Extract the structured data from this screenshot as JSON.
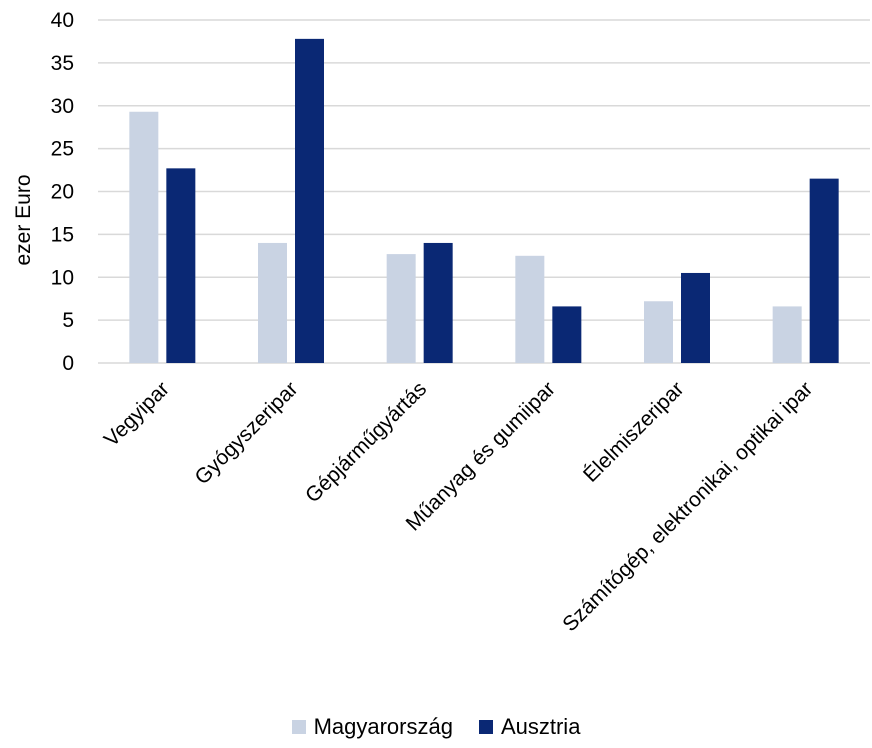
{
  "chart_data": {
    "type": "bar",
    "categories": [
      "Vegyipar",
      "Gyógyszeripar",
      "Gépjárműgyártás",
      "Műanyag és gumiipar",
      "Élelmiszeripar",
      "Számítógép, elektronikai, optikai ipar"
    ],
    "series": [
      {
        "name": "Magyarország",
        "color": "#c9d3e3",
        "values": [
          29.3,
          14.0,
          12.7,
          12.5,
          7.2,
          6.6
        ]
      },
      {
        "name": "Ausztria",
        "color": "#0a2874",
        "values": [
          22.7,
          37.8,
          14.0,
          6.6,
          10.5,
          21.5
        ]
      }
    ],
    "title": "",
    "xlabel": "",
    "ylabel": "ezer Euro",
    "ylim": [
      0,
      40
    ],
    "yticks": [
      0,
      5,
      10,
      15,
      20,
      25,
      30,
      35,
      40
    ],
    "grid": true,
    "legend_position": "bottom"
  }
}
